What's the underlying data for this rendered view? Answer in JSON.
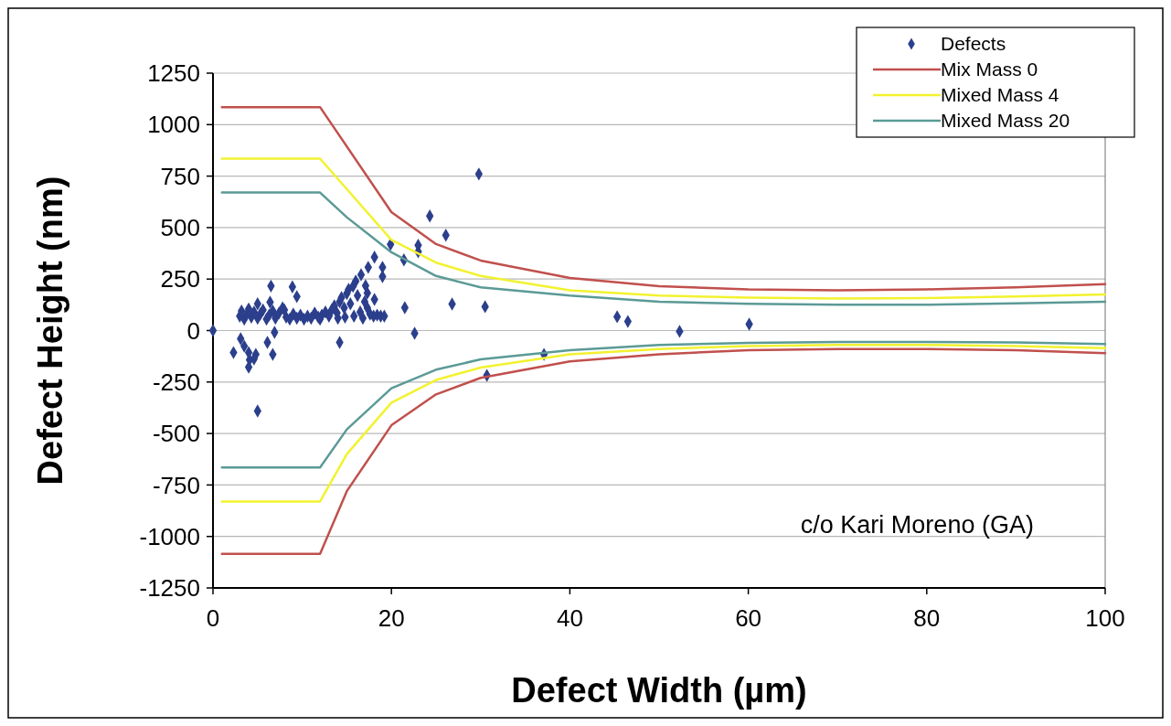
{
  "chart_data": {
    "type": "scatter",
    "xlabel": "Defect Width (µm)",
    "ylabel": "Defect Height (nm)",
    "xlim": [
      0,
      100
    ],
    "xticks": [
      0,
      20,
      40,
      60,
      80,
      100
    ],
    "ylim": [
      -1250,
      1250
    ],
    "yticks": [
      -1250,
      -1000,
      -750,
      -500,
      -250,
      0,
      250,
      500,
      750,
      1000,
      1250
    ],
    "grid": "y",
    "legend": "top right",
    "annotations": [
      "c/o Kari Moreno (GA)"
    ],
    "series": [
      {
        "name": "Defects",
        "marker": "diamond",
        "color": "#2b3f8c",
        "x": [
          0,
          3,
          3.2,
          3.5,
          3.8,
          4,
          4.3,
          4.6,
          5,
          5.3,
          5.6,
          6,
          6.3,
          6.7,
          7,
          7.4,
          7.8,
          8.2,
          8.6,
          9,
          9.4,
          9.8,
          10.2,
          10.6,
          11,
          11.4,
          11.8,
          12.2,
          12.6,
          13,
          13.3,
          13.6,
          13.9,
          14.2,
          14.4,
          14.7,
          15,
          15.2,
          15.4,
          15.7,
          16,
          16.2,
          16.5,
          16.8,
          17,
          17.3,
          17.6,
          18,
          18.4,
          18.8,
          19.2,
          15.8,
          14.8,
          14,
          12,
          8,
          5,
          6.4,
          6.5,
          8.9,
          9.4,
          18.1,
          17.4,
          19,
          19,
          16.6,
          17.1,
          17.3,
          18.1,
          29.8,
          24.3,
          26.1,
          23,
          23,
          19.9,
          21.4,
          26.8,
          30.5,
          21.5,
          22.6,
          37.1,
          30.7,
          45.3,
          46.5,
          52.3,
          60.1,
          6.9,
          6.1,
          6.7,
          14.2,
          5,
          3.1,
          2.3,
          3.5,
          4,
          4.8,
          4.1,
          4,
          4.6
        ],
        "values": [
          0,
          70,
          95,
          55,
          80,
          105,
          65,
          90,
          60,
          80,
          100,
          55,
          75,
          95,
          60,
          85,
          110,
          65,
          55,
          80,
          60,
          75,
          55,
          70,
          60,
          85,
          65,
          75,
          90,
          70,
          100,
          120,
          85,
          140,
          160,
          110,
          180,
          200,
          130,
          215,
          240,
          170,
          90,
          60,
          140,
          110,
          80,
          70,
          75,
          70,
          70,
          70,
          65,
          60,
          55,
          100,
          130,
          138,
          216,
          212,
          165,
          356,
          307,
          307,
          262,
          271,
          218,
          182,
          151,
          760,
          556,
          463,
          414,
          383,
          418,
          343,
          129,
          116,
          111,
          -13,
          -116,
          -218,
          67,
          44,
          -4,
          31,
          -9,
          -58,
          -116,
          -58,
          -391,
          -40,
          -107,
          -76,
          -107,
          -116,
          -142,
          -178,
          -138
        ]
      },
      {
        "name": "Mix Mass 0",
        "type": "line",
        "marker": "none",
        "color": "#c0504d",
        "x": [
          1,
          12,
          20,
          25,
          30,
          40,
          50,
          60,
          70,
          80,
          90,
          100
        ],
        "values": [
          1085,
          1085,
          575,
          420,
          340,
          255,
          215,
          200,
          195,
          200,
          210,
          225
        ]
      },
      {
        "name": "Mixed Mass 4",
        "type": "line",
        "marker": "none",
        "color": "#f2f230",
        "x": [
          1,
          12,
          20,
          25,
          30,
          40,
          50,
          60,
          70,
          80,
          90,
          100
        ],
        "values": [
          835,
          835,
          440,
          330,
          265,
          195,
          170,
          160,
          155,
          158,
          165,
          175
        ]
      },
      {
        "name": "Mixed Mass 20",
        "type": "line",
        "marker": "none",
        "color": "#5b9a96",
        "x": [
          1,
          12,
          15,
          20,
          25,
          30,
          40,
          50,
          60,
          70,
          80,
          90,
          100
        ],
        "values": [
          670,
          670,
          550,
          380,
          265,
          210,
          170,
          140,
          130,
          125,
          125,
          132,
          140
        ]
      },
      {
        "type": "line",
        "marker": "none",
        "color": "#c0504d",
        "x": [
          1,
          12,
          15,
          20,
          25,
          30,
          40,
          50,
          60,
          70,
          80,
          90,
          100
        ],
        "values": [
          -1085,
          -1085,
          -780,
          -460,
          -310,
          -230,
          -150,
          -115,
          -95,
          -90,
          -90,
          -95,
          -110
        ]
      },
      {
        "type": "line",
        "marker": "none",
        "color": "#f2f230",
        "x": [
          1,
          12,
          15,
          20,
          25,
          30,
          40,
          50,
          60,
          70,
          80,
          90,
          100
        ],
        "values": [
          -830,
          -830,
          -600,
          -350,
          -240,
          -180,
          -115,
          -90,
          -75,
          -70,
          -70,
          -75,
          -85
        ]
      },
      {
        "type": "line",
        "marker": "none",
        "color": "#5b9a96",
        "x": [
          1,
          12,
          15,
          20,
          25,
          30,
          40,
          50,
          60,
          70,
          80,
          90,
          100
        ],
        "values": [
          -665,
          -665,
          -480,
          -280,
          -190,
          -140,
          -95,
          -70,
          -60,
          -55,
          -55,
          -58,
          -65
        ]
      }
    ]
  }
}
